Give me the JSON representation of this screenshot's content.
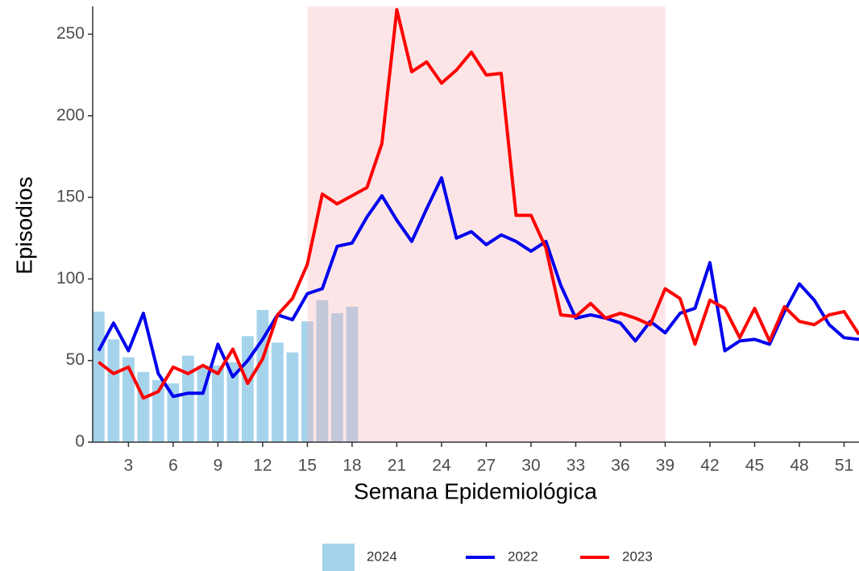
{
  "chart_data": {
    "type": "combo",
    "x_label": "Semana Epidemiológica",
    "y_label": "Episodios",
    "xlim": [
      0.6,
      52
    ],
    "ylim": [
      0,
      267
    ],
    "xticks": [
      3,
      6,
      9,
      12,
      15,
      18,
      21,
      24,
      27,
      30,
      33,
      36,
      39,
      42,
      45,
      48,
      51
    ],
    "yticks": [
      0,
      50,
      100,
      150,
      200,
      250
    ],
    "highlight": {
      "xmin": 15,
      "xmax": 39,
      "color": "#f9b4bb"
    },
    "series": [
      {
        "name": "2024",
        "type": "bar",
        "color": "#a6d3ec",
        "x": [
          1,
          2,
          3,
          4,
          5,
          6,
          7,
          8,
          9,
          10,
          11,
          12,
          13,
          14,
          15,
          16,
          17,
          18
        ],
        "values": [
          80,
          63,
          52,
          43,
          38,
          36,
          53,
          47,
          47,
          49,
          65,
          81,
          61,
          55,
          74,
          87,
          79,
          83
        ]
      },
      {
        "name": "2022",
        "type": "line",
        "color": "#0000ee",
        "x": [
          1,
          2,
          3,
          4,
          5,
          6,
          7,
          8,
          9,
          10,
          11,
          12,
          13,
          14,
          15,
          16,
          17,
          18,
          19,
          20,
          21,
          22,
          23,
          24,
          25,
          26,
          27,
          28,
          29,
          30,
          31,
          32,
          33,
          34,
          35,
          36,
          37,
          38,
          39,
          40,
          41,
          42,
          43,
          44,
          45,
          46,
          47,
          48,
          49,
          50,
          51,
          52
        ],
        "values": [
          56,
          73,
          56,
          79,
          42,
          28,
          30,
          30,
          60,
          40,
          50,
          63,
          78,
          75,
          91,
          94,
          120,
          122,
          138,
          151,
          136,
          123,
          143,
          162,
          125,
          129,
          121,
          127,
          123,
          117,
          123,
          96,
          76,
          78,
          76,
          73,
          62,
          74,
          67,
          79,
          82,
          110,
          56,
          62,
          63,
          60,
          80,
          97,
          87,
          72,
          64,
          63
        ]
      },
      {
        "name": "2023",
        "type": "line",
        "color": "#ff0000",
        "x": [
          1,
          2,
          3,
          4,
          5,
          6,
          7,
          8,
          9,
          10,
          11,
          12,
          13,
          14,
          15,
          16,
          17,
          18,
          19,
          20,
          21,
          22,
          23,
          24,
          25,
          26,
          27,
          28,
          29,
          30,
          31,
          32,
          33,
          34,
          35,
          36,
          37,
          38,
          39,
          40,
          41,
          42,
          43,
          44,
          45,
          46,
          47,
          48,
          49,
          50,
          51,
          52
        ],
        "values": [
          49,
          42,
          46,
          27,
          31,
          46,
          42,
          47,
          42,
          57,
          36,
          51,
          78,
          88,
          109,
          152,
          146,
          151,
          156,
          183,
          265,
          227,
          233,
          220,
          228,
          239,
          225,
          226,
          139,
          139,
          119,
          78,
          77,
          85,
          76,
          79,
          76,
          72,
          94,
          88,
          60,
          87,
          82,
          64,
          82,
          62,
          83,
          74,
          72,
          78,
          80,
          66
        ]
      }
    ]
  }
}
